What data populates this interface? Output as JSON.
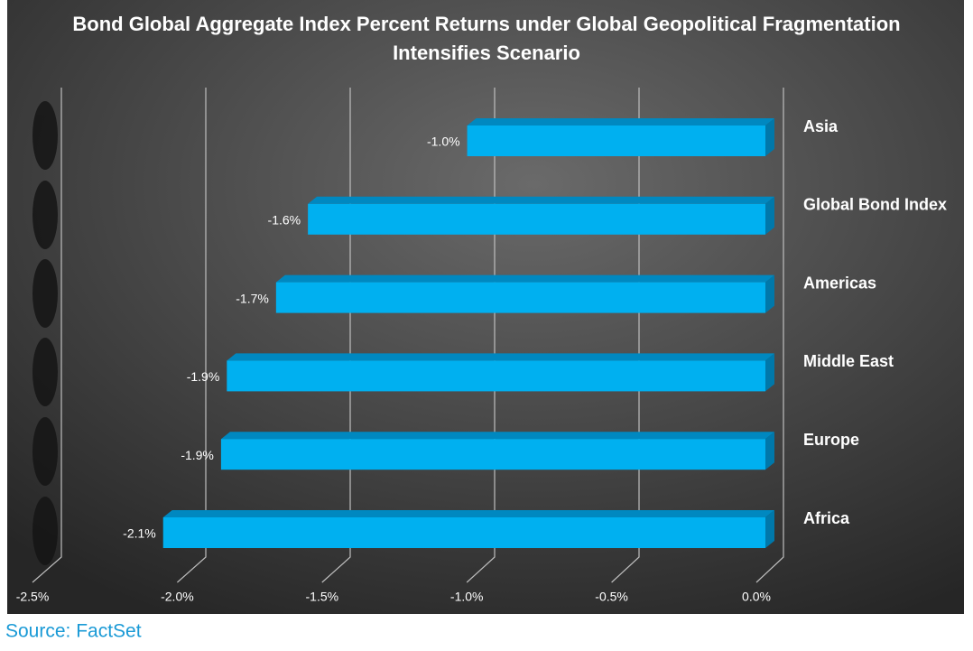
{
  "chart_data": {
    "type": "bar",
    "orientation": "horizontal",
    "title": "Bond Global Aggregate Index Percent Returns under Global Geopolitical Fragmentation Intensifies Scenario",
    "categories": [
      "Asia",
      "Global Bond Index",
      "Americas",
      "Middle East",
      "Europe",
      "Africa"
    ],
    "values": [
      -1.03,
      -1.58,
      -1.69,
      -1.86,
      -1.88,
      -2.08
    ],
    "value_labels": [
      "-1.0%",
      "-1.6%",
      "-1.7%",
      "-1.9%",
      "-1.9%",
      "-2.1%"
    ],
    "color": "#00b0f0",
    "xlim": [
      -2.5,
      0
    ],
    "xticks": [
      {
        "value": -2.5,
        "label": "-2.5%"
      },
      {
        "value": -2.0,
        "label": "-2.0%"
      },
      {
        "value": -1.5,
        "label": "-1.5%"
      },
      {
        "value": -1.0,
        "label": "-1.0%"
      },
      {
        "value": -0.5,
        "label": "-0.5%"
      },
      {
        "value": 0.0,
        "label": "0.0%"
      }
    ],
    "grid": true,
    "source": "Source: FactSet"
  }
}
